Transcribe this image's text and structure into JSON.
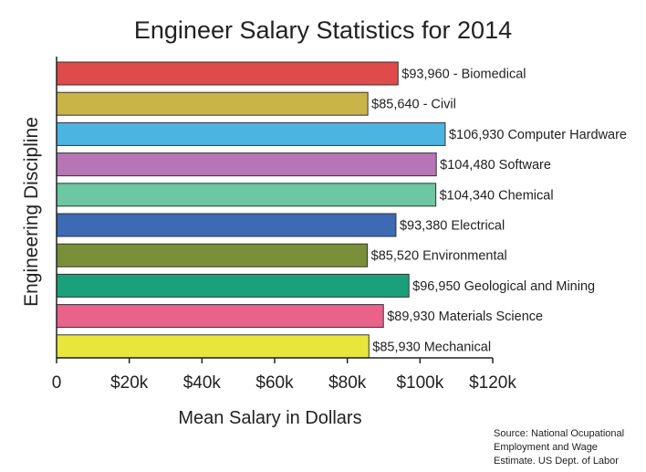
{
  "chart_data": {
    "type": "bar",
    "orientation": "horizontal",
    "title": "Engineer Salary Statistics for 2014",
    "xlabel": "Mean Salary in Dollars",
    "ylabel": "Engineering Discipline",
    "xlim": [
      0,
      120000
    ],
    "xticks": [
      {
        "value": 0,
        "label": "0"
      },
      {
        "value": 20000,
        "label": "$20k"
      },
      {
        "value": 40000,
        "label": "$40k"
      },
      {
        "value": 60000,
        "label": "$60k"
      },
      {
        "value": 80000,
        "label": "$80k"
      },
      {
        "value": 100000,
        "label": "$100k"
      },
      {
        "value": 120000,
        "label": "$120k"
      }
    ],
    "grid": false,
    "bars": [
      {
        "label": "$93,960 - Biomedical",
        "value": 93960,
        "color": "#df4a4a"
      },
      {
        "label": "$85,640 - Civil",
        "value": 85640,
        "color": "#c8b447"
      },
      {
        "label": "$106,930 Computer Hardware",
        "value": 106930,
        "color": "#4cb4e0"
      },
      {
        "label": "$104,480 Software",
        "value": 104480,
        "color": "#b875b5"
      },
      {
        "label": "$104,340 Chemical",
        "value": 104340,
        "color": "#6cc7a2"
      },
      {
        "label": "$93,380 Electrical",
        "value": 93380,
        "color": "#3c6ab5"
      },
      {
        "label": "$85,520 Environmental",
        "value": 85520,
        "color": "#7a8f3a"
      },
      {
        "label": "$96,950 Geological and Mining",
        "value": 96950,
        "color": "#1aa07a"
      },
      {
        "label": "$89,930 Materials Science",
        "value": 89930,
        "color": "#e8628a"
      },
      {
        "label": "$85,930 Mechanical",
        "value": 85930,
        "color": "#e8e63a"
      }
    ]
  },
  "source": {
    "line1": "Source: National Ocupational",
    "line2": "Employment and Wage",
    "line3": "Estimate. US Dept. of Labor"
  }
}
